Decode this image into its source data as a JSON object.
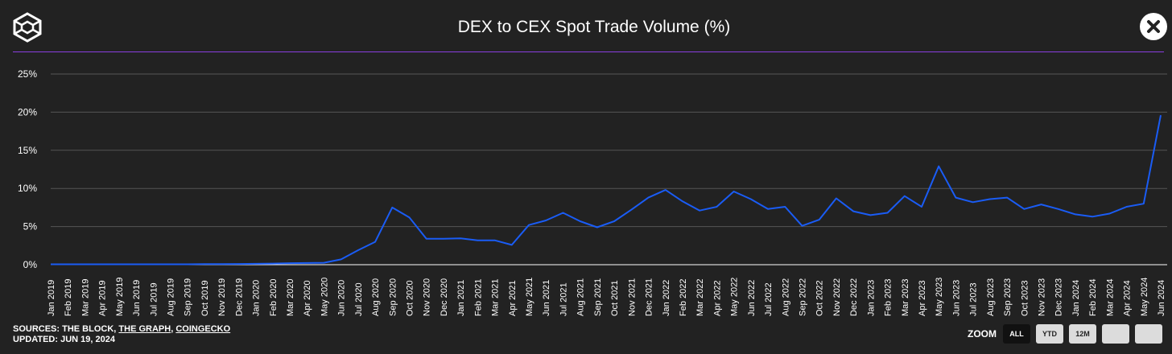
{
  "header": {
    "title": "DEX to CEX Spot Trade Volume (%)"
  },
  "footer": {
    "sources_prefix": "SOURCES:",
    "sources": [
      "THE BLOCK",
      "THE GRAPH",
      "COINGECKO"
    ],
    "updated": "UPDATED: JUN 19, 2024"
  },
  "zoom": {
    "label": "ZOOM",
    "buttons": [
      "ALL",
      "YTD",
      "12M",
      "",
      ""
    ],
    "active": "ALL"
  },
  "colors": {
    "background": "#222222",
    "line": "#1a5cf5",
    "divider": "#8a3ee0",
    "grid": "#555555"
  },
  "chart_data": {
    "type": "line",
    "title": "DEX to CEX Spot Trade Volume (%)",
    "xlabel": "",
    "ylabel": "",
    "ylim": [
      0,
      25
    ],
    "yticks": [
      0,
      5,
      10,
      15,
      20,
      25
    ],
    "ytick_labels": [
      "0%",
      "5%",
      "10%",
      "15%",
      "20%",
      "25%"
    ],
    "grid": true,
    "categories": [
      "Jan 2019",
      "Feb 2019",
      "Mar 2019",
      "Apr 2019",
      "May 2019",
      "Jun 2019",
      "Jul 2019",
      "Aug 2019",
      "Sep 2019",
      "Oct 2019",
      "Nov 2019",
      "Dec 2019",
      "Jan 2020",
      "Feb 2020",
      "Mar 2020",
      "Apr 2020",
      "May 2020",
      "Jun 2020",
      "Jul 2020",
      "Aug 2020",
      "Sep 2020",
      "Oct 2020",
      "Nov 2020",
      "Dec 2020",
      "Jan 2021",
      "Feb 2021",
      "Mar 2021",
      "Apr 2021",
      "May 2021",
      "Jun 2021",
      "Jul 2021",
      "Aug 2021",
      "Sep 2021",
      "Oct 2021",
      "Nov 2021",
      "Dec 2021",
      "Jan 2022",
      "Feb 2022",
      "Mar 2022",
      "Apr 2022",
      "May 2022",
      "Jun 2022",
      "Jul 2022",
      "Aug 2022",
      "Sep 2022",
      "Oct 2022",
      "Nov 2022",
      "Dec 2022",
      "Jan 2023",
      "Feb 2023",
      "Mar 2023",
      "Apr 2023",
      "May 2023",
      "Jun 2023",
      "Jul 2023",
      "Aug 2023",
      "Sep 2023",
      "Oct 2023",
      "Nov 2023",
      "Dec 2023",
      "Jan 2024",
      "Feb 2024",
      "Mar 2024",
      "Apr 2024",
      "May 2024",
      "Jun 2024"
    ],
    "series": [
      {
        "name": "DEX to CEX Spot Trade Volume (%)",
        "values": [
          0.05,
          0.05,
          0.05,
          0.05,
          0.05,
          0.05,
          0.05,
          0.05,
          0.05,
          0.07,
          0.08,
          0.1,
          0.12,
          0.15,
          0.2,
          0.22,
          0.25,
          0.7,
          1.9,
          3.0,
          7.5,
          6.2,
          3.4,
          3.4,
          3.45,
          3.2,
          3.2,
          2.6,
          5.2,
          5.8,
          6.8,
          5.7,
          4.9,
          5.7,
          7.2,
          8.8,
          9.8,
          8.3,
          7.1,
          7.6,
          9.6,
          8.6,
          7.3,
          7.6,
          5.1,
          5.9,
          8.7,
          7.0,
          6.5,
          6.8,
          9.0,
          7.6,
          12.9,
          8.8,
          8.2,
          8.6,
          8.8,
          7.3,
          7.9,
          7.3,
          6.6,
          6.3,
          6.7,
          7.6,
          8.0,
          19.6
        ]
      }
    ]
  }
}
